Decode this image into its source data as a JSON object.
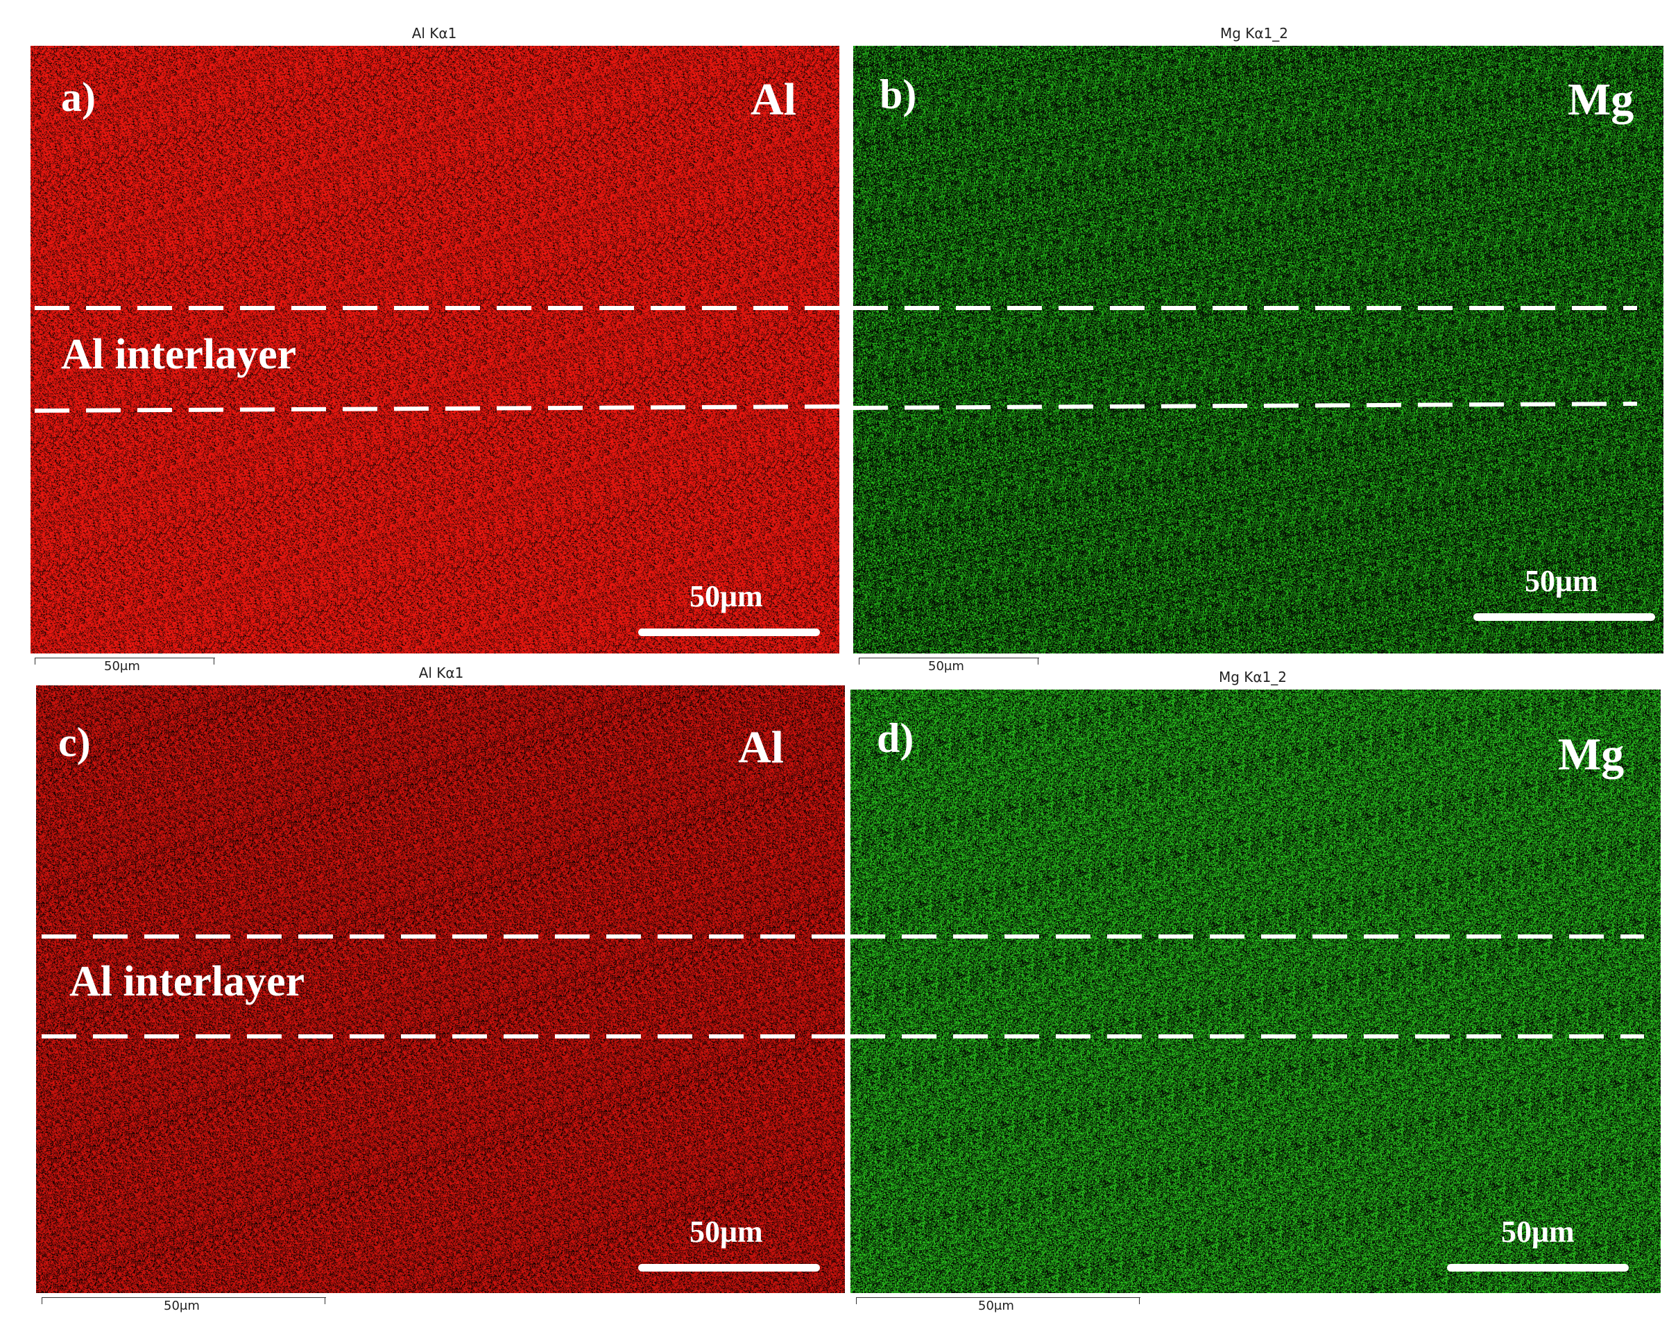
{
  "panels": [
    {
      "id": "a",
      "map_title": "Al Kα1",
      "panel_label": "a)",
      "element_label": "Al",
      "interlayer_label": "Al interlayer",
      "scale_label": "50μm",
      "external_scale_label": "50μm",
      "base_color": "#ff1a12",
      "density": 0.78
    },
    {
      "id": "b",
      "map_title": "Mg Kα1_2",
      "panel_label": "b)",
      "element_label": "Mg",
      "interlayer_label": "",
      "scale_label": "50μm",
      "external_scale_label": "50μm",
      "base_color": "#2bd41f",
      "density": 0.4
    },
    {
      "id": "c",
      "map_title": "Al Kα1",
      "panel_label": "c)",
      "element_label": "Al",
      "interlayer_label": "Al interlayer",
      "scale_label": "50μm",
      "external_scale_label": "50μm",
      "base_color": "#e0150f",
      "density": 0.68
    },
    {
      "id": "d",
      "map_title": "Mg Kα1_2",
      "panel_label": "d)",
      "element_label": "Mg",
      "interlayer_label": "",
      "scale_label": "50μm",
      "external_scale_label": "50μm",
      "base_color": "#2ed622",
      "density": 0.5
    }
  ]
}
